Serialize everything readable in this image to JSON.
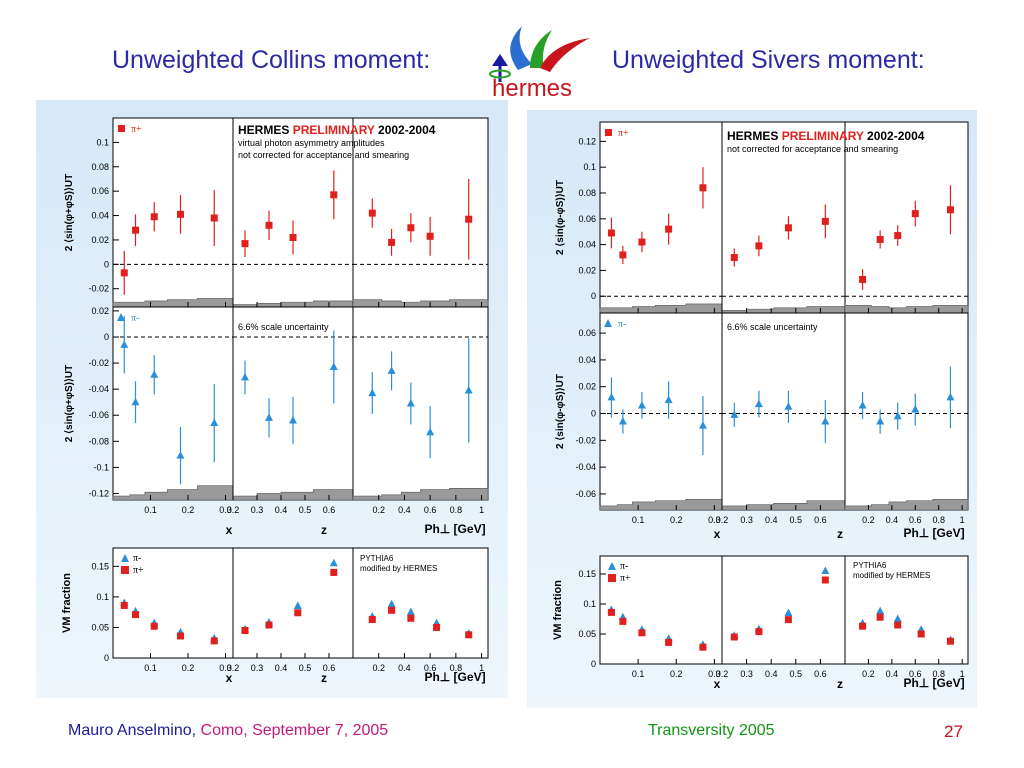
{
  "slide": {
    "title_left": "Unweighted Collins moment:",
    "title_right": "Unweighted Sivers moment:",
    "logo_text": "hermes",
    "footer_name": "Mauro Anselmino,",
    "footer_place": "Como, September 7, 2005",
    "footer_conference": "Transversity 2005",
    "page_number": "27",
    "colors": {
      "title": "#2a2aa6",
      "pi_plus": "#e0201c",
      "pi_minus": "#2a8fd8",
      "logo_red": "#c8141c",
      "band": "#9a9a9a"
    }
  },
  "chart_data": [
    {
      "type": "scatter",
      "title": "Unweighted Collins moment:",
      "header_lines": [
        "HERMES",
        "PRELIMINARY",
        "2002-2004",
        "virtual photon asymmetry amplitudes",
        "not corrected for acceptance and smearing"
      ],
      "scale_note": "6.6% scale uncertainty",
      "pythia_note": [
        "PYTHIA6",
        "modified by HERMES"
      ],
      "top_ylabel": "2 ⟨sin(φ+φS)⟩UT",
      "mid_ylabel": "2 ⟨sin(φ+φS)⟩UT",
      "bottom_ylabel": "VM fraction",
      "xlabels": [
        "x",
        "z",
        "Ph⊥ [GeV]"
      ],
      "top": {
        "label": "π+",
        "ylim": [
          -0.035,
          0.12
        ],
        "yticks": [
          -0.02,
          0,
          0.02,
          0.04,
          0.06,
          0.08,
          0.1
        ],
        "ytick_labels": [
          "-0.02",
          "0",
          "0.02",
          "0.04",
          "0.06",
          "0.08",
          "0.1"
        ],
        "x": [
          [
            0.03,
            0.06,
            0.11,
            0.18,
            0.27
          ],
          [
            0.25,
            0.35,
            0.45,
            0.62
          ],
          [
            0.15,
            0.3,
            0.45,
            0.6,
            0.9
          ]
        ],
        "y": [
          [
            -0.007,
            0.028,
            0.039,
            0.041,
            0.038
          ],
          [
            0.017,
            0.032,
            0.022,
            0.057
          ],
          [
            0.042,
            0.018,
            0.03,
            0.023,
            0.037
          ]
        ],
        "err": [
          [
            0.018,
            0.013,
            0.012,
            0.016,
            0.023
          ],
          [
            0.011,
            0.012,
            0.014,
            0.02
          ],
          [
            0.012,
            0.011,
            0.012,
            0.016,
            0.033
          ]
        ],
        "band": [
          [
            0.004,
            0.004,
            0.005,
            0.006,
            0.007
          ],
          [
            0.002,
            0.003,
            0.004,
            0.005
          ],
          [
            0.006,
            0.005,
            0.004,
            0.005,
            0.006
          ]
        ]
      },
      "mid": {
        "label": "π-",
        "ylim": [
          -0.125,
          0.023
        ],
        "yticks": [
          -0.12,
          -0.1,
          -0.08,
          -0.06,
          -0.04,
          -0.02,
          0,
          0.02
        ],
        "ytick_labels": [
          "-0.12",
          "-0.1",
          "-0.08",
          "-0.06",
          "-0.04",
          "-0.02",
          "0",
          "0.02"
        ],
        "x": [
          [
            0.03,
            0.06,
            0.11,
            0.18,
            0.27
          ],
          [
            0.25,
            0.35,
            0.45,
            0.62
          ],
          [
            0.15,
            0.3,
            0.45,
            0.6,
            0.9
          ]
        ],
        "y": [
          [
            -0.006,
            -0.05,
            -0.029,
            -0.091,
            -0.066
          ],
          [
            -0.031,
            -0.062,
            -0.064,
            -0.023
          ],
          [
            -0.043,
            -0.026,
            -0.051,
            -0.073,
            -0.041
          ]
        ],
        "err": [
          [
            0.022,
            0.016,
            0.015,
            0.022,
            0.03
          ],
          [
            0.013,
            0.015,
            0.018,
            0.028
          ],
          [
            0.016,
            0.015,
            0.016,
            0.02,
            0.04
          ]
        ],
        "band": [
          [
            0.003,
            0.004,
            0.006,
            0.008,
            0.011
          ],
          [
            0.003,
            0.005,
            0.006,
            0.008
          ],
          [
            0.003,
            0.004,
            0.006,
            0.008,
            0.009
          ]
        ]
      },
      "bottom": {
        "ylim": [
          0,
          0.18
        ],
        "yticks": [
          0,
          0.05,
          0.1,
          0.15
        ],
        "ytick_labels": [
          "0",
          "0.05",
          "0.1",
          "0.15"
        ],
        "legend": [
          "π-",
          "π+"
        ],
        "x": [
          [
            0.03,
            0.06,
            0.11,
            0.18,
            0.27
          ],
          [
            0.25,
            0.35,
            0.47,
            0.62
          ],
          [
            0.15,
            0.3,
            0.45,
            0.65,
            0.9
          ]
        ],
        "pi_minus": [
          [
            0.09,
            0.076,
            0.057,
            0.042,
            0.032
          ],
          [
            0.047,
            0.058,
            0.085,
            0.155
          ],
          [
            0.068,
            0.088,
            0.075,
            0.057,
            0.04
          ]
        ],
        "pi_plus": [
          [
            0.086,
            0.071,
            0.052,
            0.036,
            0.028
          ],
          [
            0.045,
            0.054,
            0.074,
            0.14
          ],
          [
            0.063,
            0.078,
            0.065,
            0.05,
            0.038
          ]
        ]
      }
    },
    {
      "type": "scatter",
      "title": "Unweighted Sivers moment:",
      "header_lines": [
        "HERMES",
        "PRELIMINARY",
        "2002-2004",
        "not corrected for acceptance and smearing"
      ],
      "scale_note": "6.6% scale uncertainty",
      "pythia_note": [
        "PYTHIA6",
        "modified by HERMES"
      ],
      "top_ylabel": "2 ⟨sin(φ-φS)⟩UT",
      "mid_ylabel": "2 ⟨sin(φ-φS)⟩UT",
      "bottom_ylabel": "VM fraction",
      "xlabels": [
        "x",
        "z",
        "Ph⊥ [GeV]"
      ],
      "top": {
        "label": "π+",
        "ylim": [
          -0.013,
          0.135
        ],
        "yticks": [
          0,
          0.02,
          0.04,
          0.06,
          0.08,
          0.1,
          0.12
        ],
        "ytick_labels": [
          "0",
          "0.02",
          "0.04",
          "0.06",
          "0.08",
          "0.1",
          "0.12"
        ],
        "x": [
          [
            0.03,
            0.06,
            0.11,
            0.18,
            0.27
          ],
          [
            0.25,
            0.35,
            0.47,
            0.62
          ],
          [
            0.15,
            0.3,
            0.45,
            0.6,
            0.9
          ]
        ],
        "y": [
          [
            0.049,
            0.032,
            0.042,
            0.052,
            0.084
          ],
          [
            0.03,
            0.039,
            0.053,
            0.058
          ],
          [
            0.013,
            0.044,
            0.047,
            0.064,
            0.067
          ]
        ],
        "err": [
          [
            0.012,
            0.007,
            0.008,
            0.012,
            0.016
          ],
          [
            0.007,
            0.008,
            0.009,
            0.013
          ],
          [
            0.008,
            0.007,
            0.008,
            0.01,
            0.019
          ]
        ],
        "band": [
          [
            0.004,
            0.004,
            0.005,
            0.006,
            0.007
          ],
          [
            0.002,
            0.003,
            0.004,
            0.005
          ],
          [
            0.006,
            0.005,
            0.004,
            0.005,
            0.006
          ]
        ]
      },
      "mid": {
        "label": "π-",
        "ylim": [
          -0.072,
          0.075
        ],
        "yticks": [
          -0.06,
          -0.04,
          -0.02,
          0,
          0.02,
          0.04,
          0.06
        ],
        "ytick_labels": [
          "-0.06",
          "-0.04",
          "-0.02",
          "0",
          "0.02",
          "0.04",
          "0.06"
        ],
        "x": [
          [
            0.03,
            0.06,
            0.11,
            0.18,
            0.27
          ],
          [
            0.25,
            0.35,
            0.47,
            0.62
          ],
          [
            0.15,
            0.3,
            0.45,
            0.6,
            0.9
          ]
        ],
        "y": [
          [
            0.012,
            -0.006,
            0.006,
            0.01,
            -0.009
          ],
          [
            -0.001,
            0.007,
            0.005,
            -0.006
          ],
          [
            0.006,
            -0.006,
            -0.002,
            0.003,
            0.012
          ]
        ],
        "err": [
          [
            0.015,
            0.009,
            0.01,
            0.014,
            0.022
          ],
          [
            0.009,
            0.01,
            0.012,
            0.016
          ],
          [
            0.01,
            0.009,
            0.01,
            0.012,
            0.023
          ]
        ],
        "band": [
          [
            0.003,
            0.004,
            0.006,
            0.007,
            0.008
          ],
          [
            0.003,
            0.004,
            0.005,
            0.007
          ],
          [
            0.003,
            0.004,
            0.006,
            0.007,
            0.008
          ]
        ]
      },
      "bottom": {
        "ylim": [
          0,
          0.18
        ],
        "yticks": [
          0,
          0.05,
          0.1,
          0.15
        ],
        "ytick_labels": [
          "0",
          "0.05",
          "0.1",
          "0.15"
        ],
        "legend": [
          "π-",
          "π+"
        ],
        "x": [
          [
            0.03,
            0.06,
            0.11,
            0.18,
            0.27
          ],
          [
            0.25,
            0.35,
            0.47,
            0.62
          ],
          [
            0.15,
            0.3,
            0.45,
            0.65,
            0.9
          ]
        ],
        "pi_minus": [
          [
            0.09,
            0.078,
            0.057,
            0.042,
            0.032
          ],
          [
            0.047,
            0.058,
            0.085,
            0.155
          ],
          [
            0.068,
            0.088,
            0.075,
            0.057,
            0.04
          ]
        ],
        "pi_plus": [
          [
            0.086,
            0.071,
            0.052,
            0.036,
            0.028
          ],
          [
            0.045,
            0.054,
            0.074,
            0.14
          ],
          [
            0.063,
            0.078,
            0.065,
            0.05,
            0.038
          ]
        ]
      }
    }
  ],
  "x_axes": {
    "x": {
      "range": [
        0,
        0.32
      ],
      "ticks": [
        0.1,
        0.2,
        0.3
      ],
      "tick_labels": [
        "0.1",
        "0.2",
        "0.3"
      ]
    },
    "z": {
      "range": [
        0.2,
        0.7
      ],
      "ticks": [
        0.2,
        0.3,
        0.4,
        0.5,
        0.6
      ],
      "tick_labels": [
        "0.2",
        "0.3",
        "0.4",
        "0.5",
        "0.6"
      ]
    },
    "pt": {
      "range": [
        0,
        1.05
      ],
      "ticks": [
        0.2,
        0.4,
        0.6,
        0.8,
        1
      ],
      "tick_labels": [
        "0.2",
        "0.4",
        "0.6",
        "0.8",
        "1"
      ]
    }
  }
}
